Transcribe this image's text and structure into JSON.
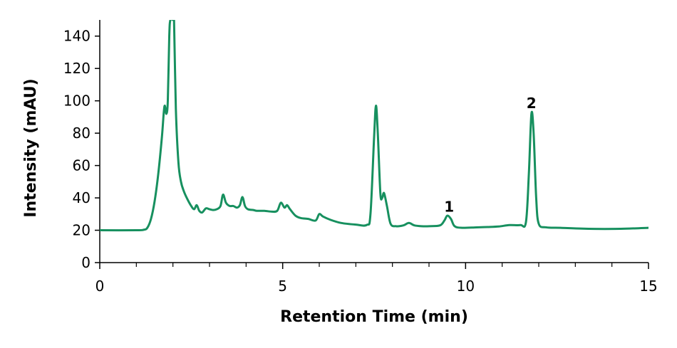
{
  "chart_data": {
    "type": "line",
    "title": "",
    "xlabel": "Retention Time (min)",
    "ylabel": "Intensity (mAU)",
    "xlim": [
      0,
      15
    ],
    "ylim": [
      0,
      150
    ],
    "x_ticks": [
      0,
      5,
      10,
      15
    ],
    "x_minor_step": 1,
    "y_ticks": [
      0,
      20,
      40,
      60,
      80,
      100,
      120,
      140
    ],
    "grid": false,
    "legend": "none",
    "line_color": "#17905f",
    "series": [
      {
        "points": [
          [
            0.0,
            20
          ],
          [
            1.0,
            20
          ],
          [
            1.2,
            20.3
          ],
          [
            1.3,
            21.5
          ],
          [
            1.4,
            27
          ],
          [
            1.5,
            38
          ],
          [
            1.6,
            55
          ],
          [
            1.7,
            78
          ],
          [
            1.75,
            93
          ],
          [
            1.78,
            97
          ],
          [
            1.82,
            92
          ],
          [
            1.86,
            100
          ],
          [
            1.9,
            140
          ],
          [
            1.93,
            150
          ],
          [
            2.0,
            150
          ],
          [
            2.03,
            150
          ],
          [
            2.08,
            95
          ],
          [
            2.15,
            62
          ],
          [
            2.22,
            50
          ],
          [
            2.3,
            44
          ],
          [
            2.4,
            39
          ],
          [
            2.5,
            35
          ],
          [
            2.58,
            33
          ],
          [
            2.65,
            35.5
          ],
          [
            2.72,
            32
          ],
          [
            2.8,
            31
          ],
          [
            2.9,
            33.5
          ],
          [
            3.0,
            33
          ],
          [
            3.1,
            32.5
          ],
          [
            3.2,
            33
          ],
          [
            3.3,
            35
          ],
          [
            3.37,
            42
          ],
          [
            3.45,
            37
          ],
          [
            3.55,
            35
          ],
          [
            3.65,
            35
          ],
          [
            3.75,
            34
          ],
          [
            3.83,
            35.5
          ],
          [
            3.9,
            40.5
          ],
          [
            3.97,
            35
          ],
          [
            4.05,
            33
          ],
          [
            4.2,
            32.5
          ],
          [
            4.3,
            32
          ],
          [
            4.5,
            32
          ],
          [
            4.7,
            31.5
          ],
          [
            4.85,
            32
          ],
          [
            4.95,
            37
          ],
          [
            5.05,
            34
          ],
          [
            5.12,
            35.5
          ],
          [
            5.2,
            33
          ],
          [
            5.35,
            29
          ],
          [
            5.5,
            27.5
          ],
          [
            5.7,
            27
          ],
          [
            5.9,
            26
          ],
          [
            6.0,
            30
          ],
          [
            6.1,
            28.5
          ],
          [
            6.3,
            26.5
          ],
          [
            6.6,
            24.5
          ],
          [
            7.0,
            23.5
          ],
          [
            7.3,
            23.3
          ],
          [
            7.4,
            30
          ],
          [
            7.5,
            78
          ],
          [
            7.55,
            97
          ],
          [
            7.6,
            80
          ],
          [
            7.67,
            43
          ],
          [
            7.72,
            40
          ],
          [
            7.77,
            43
          ],
          [
            7.85,
            35
          ],
          [
            7.95,
            24
          ],
          [
            8.1,
            22.5
          ],
          [
            8.3,
            23
          ],
          [
            8.45,
            24.5
          ],
          [
            8.6,
            23
          ],
          [
            8.8,
            22.5
          ],
          [
            9.0,
            22.5
          ],
          [
            9.3,
            23
          ],
          [
            9.42,
            26
          ],
          [
            9.5,
            29
          ],
          [
            9.6,
            27
          ],
          [
            9.7,
            22.5
          ],
          [
            9.9,
            21.5
          ],
          [
            10.3,
            21.8
          ],
          [
            10.6,
            22
          ],
          [
            10.9,
            22.3
          ],
          [
            11.2,
            23.2
          ],
          [
            11.5,
            23.2
          ],
          [
            11.65,
            25
          ],
          [
            11.73,
            55
          ],
          [
            11.8,
            92
          ],
          [
            11.86,
            80
          ],
          [
            11.93,
            40
          ],
          [
            12.0,
            24
          ],
          [
            12.2,
            21.8
          ],
          [
            12.6,
            21.5
          ],
          [
            13.2,
            21
          ],
          [
            13.8,
            20.8
          ],
          [
            14.4,
            21
          ],
          [
            15.0,
            21.5
          ]
        ]
      }
    ],
    "annotations": [
      {
        "label": "1",
        "x": 9.55,
        "y": 31.5
      },
      {
        "label": "2",
        "x": 11.8,
        "y": 95.5
      }
    ]
  }
}
